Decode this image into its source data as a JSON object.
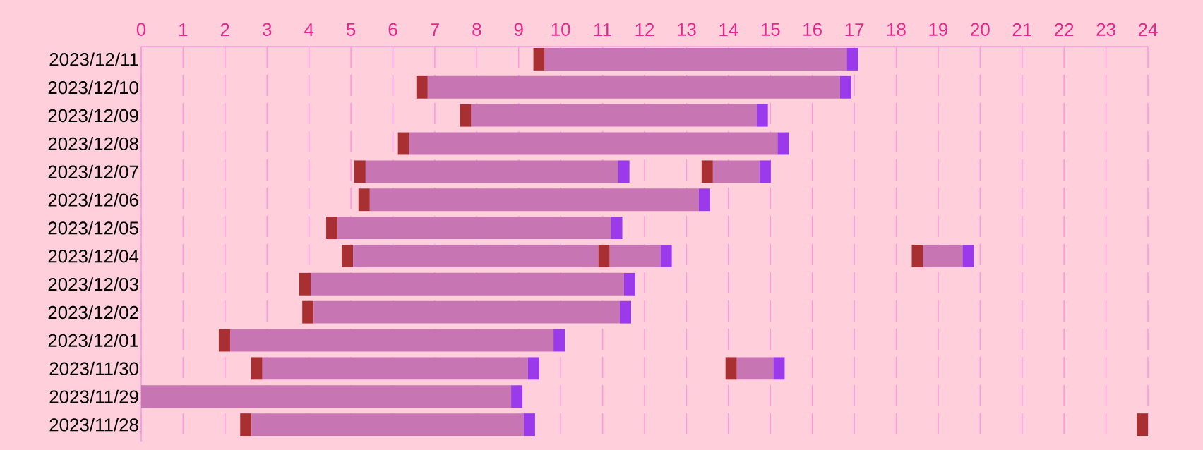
{
  "chart_data": {
    "type": "bar",
    "orientation": "horizontal",
    "grid": "x",
    "categories": [
      "2023/12/11",
      "2023/12/10",
      "2023/12/09",
      "2023/12/08",
      "2023/12/07",
      "2023/12/06",
      "2023/12/05",
      "2023/12/04",
      "2023/12/03",
      "2023/12/02",
      "2023/12/01",
      "2023/11/30",
      "2023/11/29",
      "2023/11/28"
    ],
    "xlim": [
      0,
      24
    ],
    "xticks": [
      0,
      1,
      2,
      3,
      4,
      5,
      6,
      7,
      8,
      9,
      10,
      11,
      12,
      13,
      14,
      15,
      16,
      17,
      18,
      19,
      20,
      21,
      22,
      23,
      24
    ],
    "series": [
      {
        "color": "#a83032",
        "base": [
          9.35,
          6.56,
          7.6,
          6.12,
          5.08,
          5.18,
          4.41,
          4.78,
          3.77,
          3.84,
          1.85,
          2.62,
          null,
          2.36
        ],
        "values": [
          0.27,
          0.27,
          0.27,
          0.27,
          0.27,
          0.27,
          0.27,
          0.27,
          0.27,
          0.27,
          0.27,
          0.27,
          null,
          0.27
        ]
      },
      {
        "color": "#c775b3",
        "base": [
          9.62,
          6.83,
          7.87,
          6.39,
          5.35,
          5.45,
          4.68,
          5.05,
          4.04,
          4.11,
          2.12,
          2.89,
          0,
          2.63
        ],
        "values": [
          7.2,
          9.83,
          6.8,
          8.78,
          6.02,
          7.84,
          6.52,
          5.85,
          7.47,
          7.3,
          7.71,
          6.33,
          8.82,
          6.49
        ]
      },
      {
        "color": "#9b3aea",
        "base": [
          16.82,
          16.66,
          14.67,
          15.17,
          11.37,
          13.29,
          11.2,
          null,
          11.51,
          11.41,
          9.83,
          9.22,
          8.82,
          9.12
        ],
        "values": [
          0.27,
          0.27,
          0.27,
          0.27,
          0.27,
          0.27,
          0.27,
          null,
          0.27,
          0.27,
          0.27,
          0.27,
          0.27,
          0.27
        ]
      },
      {
        "color": "#a83032",
        "base": [
          null,
          null,
          null,
          null,
          13.36,
          null,
          null,
          10.9,
          null,
          null,
          null,
          13.93,
          null,
          23.73
        ],
        "values": [
          null,
          null,
          null,
          null,
          0.27,
          null,
          null,
          0.27,
          null,
          null,
          null,
          0.27,
          null,
          0.27
        ]
      },
      {
        "color": "#c775b3",
        "base": [
          null,
          null,
          null,
          null,
          13.63,
          null,
          null,
          11.17,
          null,
          null,
          null,
          14.2,
          null,
          null
        ],
        "values": [
          null,
          null,
          null,
          null,
          1.11,
          null,
          null,
          1.21,
          null,
          null,
          null,
          0.87,
          null,
          null
        ]
      },
      {
        "color": "#9b3aea",
        "base": [
          null,
          null,
          null,
          null,
          14.74,
          null,
          null,
          12.38,
          null,
          null,
          null,
          15.07,
          null,
          null
        ],
        "values": [
          null,
          null,
          null,
          null,
          0.27,
          null,
          null,
          0.27,
          null,
          null,
          null,
          0.27,
          null,
          null
        ]
      },
      {
        "color": "#a83032",
        "base": [
          null,
          null,
          null,
          null,
          null,
          null,
          null,
          18.37,
          null,
          null,
          null,
          null,
          null,
          null
        ],
        "values": [
          null,
          null,
          null,
          null,
          null,
          null,
          null,
          0.27,
          null,
          null,
          null,
          null,
          null,
          null
        ]
      },
      {
        "color": "#c775b3",
        "base": [
          null,
          null,
          null,
          null,
          null,
          null,
          null,
          18.64,
          null,
          null,
          null,
          null,
          null,
          null
        ],
        "values": [
          null,
          null,
          null,
          null,
          null,
          null,
          null,
          0.94,
          null,
          null,
          null,
          null,
          null,
          null
        ]
      },
      {
        "color": "#9b3aea",
        "base": [
          null,
          null,
          null,
          null,
          null,
          null,
          null,
          19.58,
          null,
          null,
          null,
          null,
          null,
          null
        ],
        "values": [
          null,
          null,
          null,
          null,
          null,
          null,
          null,
          0.27,
          null,
          null,
          null,
          null,
          null,
          null
        ]
      }
    ]
  }
}
